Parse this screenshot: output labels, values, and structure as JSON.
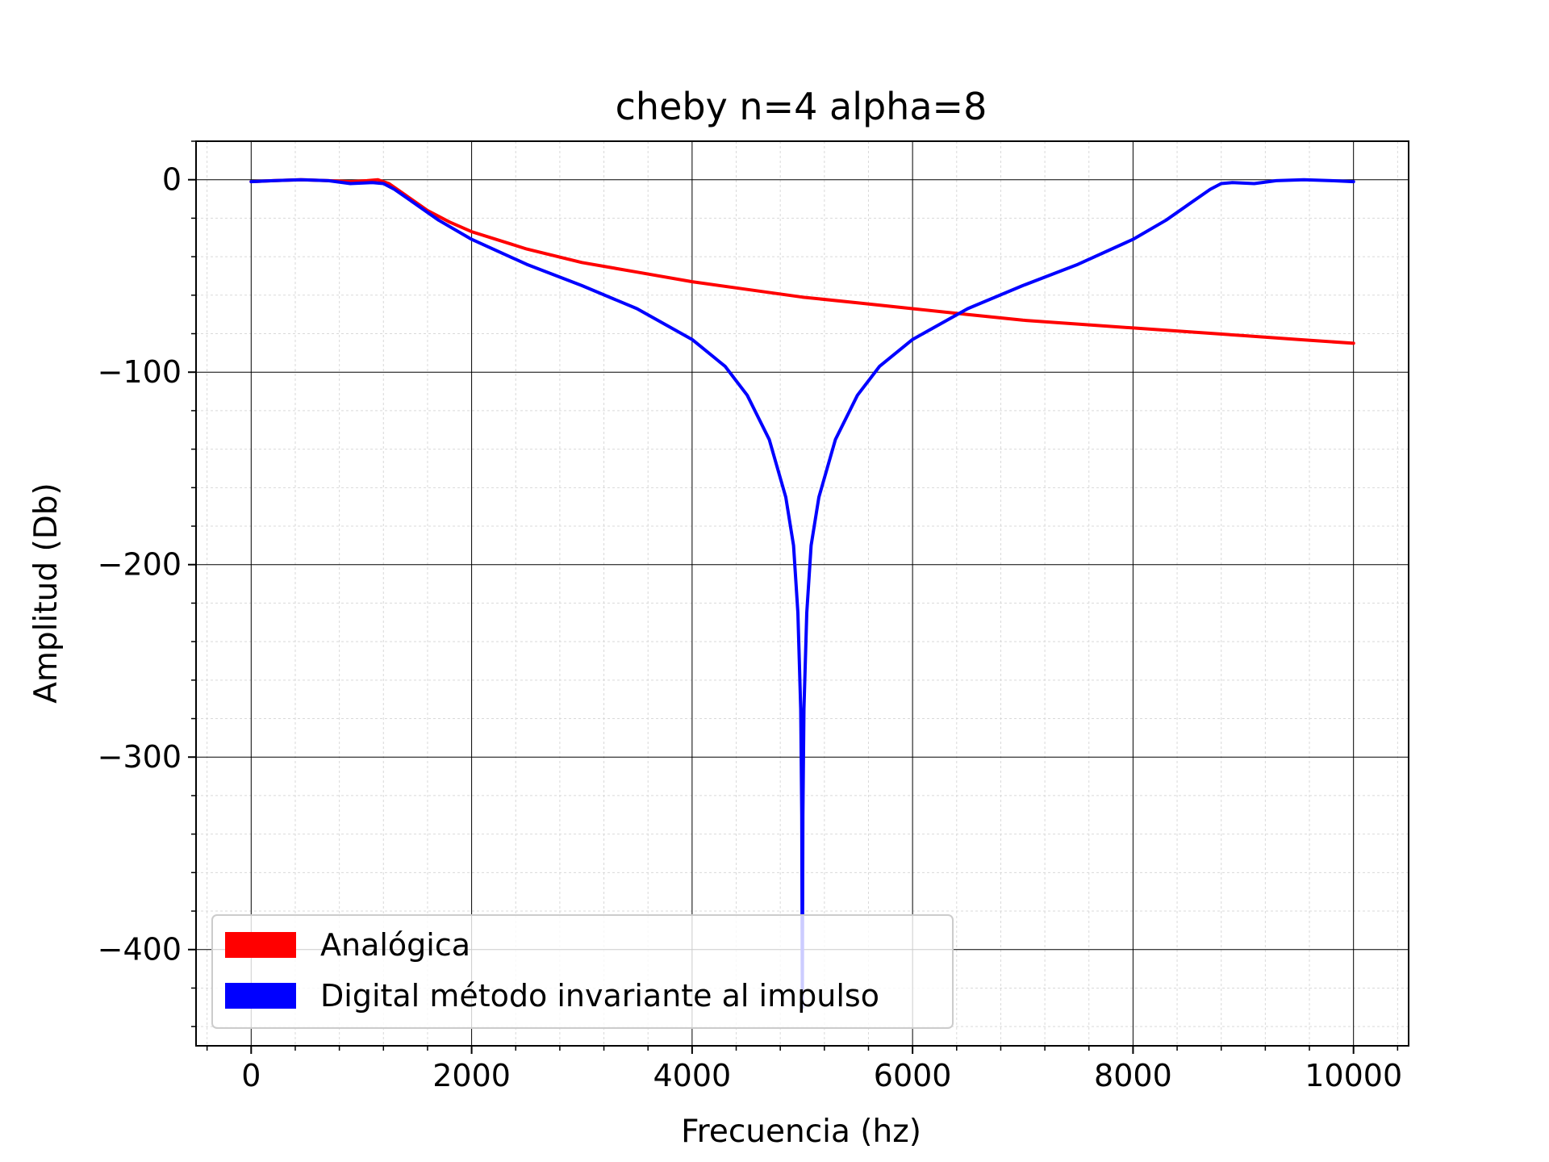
{
  "chart_data": {
    "type": "line",
    "title": "cheby n=4 alpha=8",
    "xlabel": "Frecuencia (hz)",
    "ylabel": "Amplitud (Db)",
    "xlim": [
      -500,
      10500
    ],
    "ylim": [
      -450,
      20
    ],
    "x_ticks": [
      0,
      2000,
      4000,
      6000,
      8000,
      10000
    ],
    "x_tick_labels": [
      "0",
      "2000",
      "4000",
      "6000",
      "8000",
      "10000"
    ],
    "y_ticks": [
      0,
      -100,
      -200,
      -300,
      -400
    ],
    "y_tick_labels": [
      "0",
      "−100",
      "−200",
      "−300",
      "−400"
    ],
    "grid": "major and minor",
    "legend_position": "lower-left",
    "series": [
      {
        "name": "Analógica",
        "color": "#ff0000",
        "points": [
          [
            0,
            -1
          ],
          [
            200,
            -0.5
          ],
          [
            450,
            0
          ],
          [
            700,
            -0.5
          ],
          [
            900,
            -1
          ],
          [
            1050,
            -0.5
          ],
          [
            1150,
            0
          ],
          [
            1250,
            -2
          ],
          [
            1400,
            -8
          ],
          [
            1600,
            -16
          ],
          [
            1800,
            -22
          ],
          [
            2000,
            -27
          ],
          [
            2500,
            -36
          ],
          [
            3000,
            -43
          ],
          [
            3500,
            -48
          ],
          [
            4000,
            -53
          ],
          [
            4500,
            -57
          ],
          [
            5000,
            -61
          ],
          [
            5500,
            -64
          ],
          [
            6000,
            -67
          ],
          [
            6500,
            -70
          ],
          [
            7000,
            -73
          ],
          [
            7500,
            -75
          ],
          [
            8000,
            -77
          ],
          [
            8500,
            -79
          ],
          [
            9000,
            -81
          ],
          [
            9500,
            -83
          ],
          [
            10000,
            -85
          ]
        ]
      },
      {
        "name": "Digital método invariante al impulso",
        "color": "#0000ff",
        "points": [
          [
            0,
            -1
          ],
          [
            200,
            -0.5
          ],
          [
            450,
            0
          ],
          [
            700,
            -0.5
          ],
          [
            900,
            -2
          ],
          [
            1100,
            -1.5
          ],
          [
            1200,
            -2
          ],
          [
            1300,
            -5
          ],
          [
            1500,
            -13
          ],
          [
            1700,
            -21
          ],
          [
            2000,
            -31
          ],
          [
            2500,
            -44
          ],
          [
            3000,
            -55
          ],
          [
            3500,
            -67
          ],
          [
            4000,
            -83
          ],
          [
            4300,
            -97
          ],
          [
            4500,
            -112
          ],
          [
            4700,
            -135
          ],
          [
            4850,
            -165
          ],
          [
            4920,
            -190
          ],
          [
            4960,
            -225
          ],
          [
            4985,
            -275
          ],
          [
            4995,
            -330
          ],
          [
            5000,
            -430
          ],
          [
            5005,
            -330
          ],
          [
            5015,
            -275
          ],
          [
            5040,
            -225
          ],
          [
            5080,
            -190
          ],
          [
            5150,
            -165
          ],
          [
            5300,
            -135
          ],
          [
            5500,
            -112
          ],
          [
            5700,
            -97
          ],
          [
            6000,
            -83
          ],
          [
            6500,
            -67
          ],
          [
            7000,
            -55
          ],
          [
            7500,
            -44
          ],
          [
            8000,
            -31
          ],
          [
            8300,
            -21
          ],
          [
            8500,
            -13
          ],
          [
            8700,
            -5
          ],
          [
            8800,
            -2
          ],
          [
            8900,
            -1.5
          ],
          [
            9100,
            -2
          ],
          [
            9300,
            -0.5
          ],
          [
            9550,
            0
          ],
          [
            9800,
            -0.5
          ],
          [
            10000,
            -1
          ]
        ]
      }
    ]
  }
}
